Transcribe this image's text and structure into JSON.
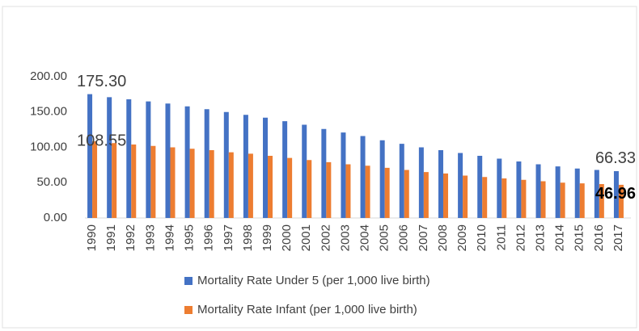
{
  "chart_data": {
    "type": "bar",
    "categories": [
      "1990",
      "1991",
      "1992",
      "1993",
      "1994",
      "1995",
      "1996",
      "1997",
      "1998",
      "1999",
      "2000",
      "2001",
      "2002",
      "2003",
      "2004",
      "2005",
      "2006",
      "2007",
      "2008",
      "2009",
      "2010",
      "2011",
      "2012",
      "2013",
      "2014",
      "2015",
      "2016",
      "2017"
    ],
    "series": [
      {
        "name": "Mortality Rate Under 5 (per 1,000 live birth)",
        "color": "#4472c4",
        "values": [
          175.3,
          171,
          168,
          165,
          162,
          158,
          154,
          150,
          146,
          142,
          137,
          132,
          126,
          121,
          116,
          110,
          105,
          100,
          96,
          92,
          88,
          84,
          80,
          76,
          73,
          70,
          68,
          66.33
        ],
        "value_labels": [
          "175.30",
          null,
          null,
          null,
          null,
          null,
          null,
          null,
          null,
          null,
          null,
          null,
          null,
          null,
          null,
          null,
          null,
          null,
          null,
          null,
          null,
          null,
          null,
          null,
          null,
          null,
          null,
          "66.33"
        ]
      },
      {
        "name": "Mortality Rate Infant (per 1,000 live birth)",
        "color": "#ed7d31",
        "values": [
          108.55,
          106,
          104,
          102,
          100,
          98,
          96,
          93,
          91,
          88,
          85,
          82,
          79,
          76,
          74,
          71,
          68,
          65,
          63,
          60,
          58,
          56,
          54,
          52,
          50,
          49,
          48,
          46.96
        ],
        "value_labels": [
          "108.55",
          null,
          null,
          null,
          null,
          null,
          null,
          null,
          null,
          null,
          null,
          null,
          null,
          null,
          null,
          null,
          null,
          null,
          null,
          null,
          null,
          null,
          null,
          null,
          null,
          null,
          null,
          "46.96"
        ]
      }
    ],
    "ylim": [
      0,
      200
    ],
    "yticks": [
      {
        "value": 0,
        "label": "0.00"
      },
      {
        "value": 50,
        "label": "50.00"
      },
      {
        "value": 100,
        "label": "100.00"
      },
      {
        "value": 150,
        "label": "150.00"
      },
      {
        "value": 200,
        "label": "200.00"
      }
    ],
    "legend": "bottom"
  }
}
